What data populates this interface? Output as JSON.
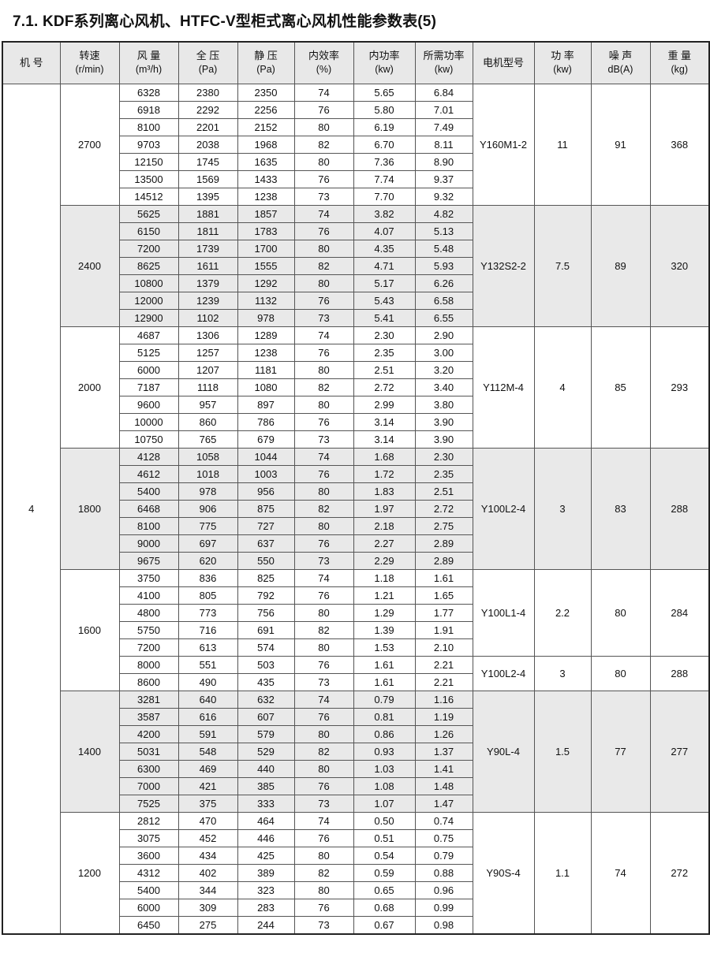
{
  "title": "7.1. KDF系列离心风机、HTFC-V型柜式离心风机性能参数表(5)",
  "machine_no": "4",
  "colors": {
    "header_bg": "#e8e8e8",
    "shaded_row_bg": "#e9e9e9",
    "border": "#555555"
  },
  "columns": [
    {
      "label": "机 号",
      "sub": ""
    },
    {
      "label": "转速",
      "sub": "(r/min)"
    },
    {
      "label": "风 量",
      "sub": "(m³/h)"
    },
    {
      "label": "全 压",
      "sub": "(Pa)"
    },
    {
      "label": "静 压",
      "sub": "(Pa)"
    },
    {
      "label": "内效率",
      "sub": "(%)"
    },
    {
      "label": "内功率",
      "sub": "(kw)"
    },
    {
      "label": "所需功率",
      "sub": "(kw)"
    },
    {
      "label": "电机型号",
      "sub": ""
    },
    {
      "label": "功 率",
      "sub": "(kw)"
    },
    {
      "label": "噪 声",
      "sub": "dB(A)"
    },
    {
      "label": "重 量",
      "sub": "(kg)"
    }
  ],
  "groups": [
    {
      "speed": "2700",
      "shaded": false,
      "rows": [
        [
          "6328",
          "2380",
          "2350",
          "74",
          "5.65",
          "6.84"
        ],
        [
          "6918",
          "2292",
          "2256",
          "76",
          "5.80",
          "7.01"
        ],
        [
          "8100",
          "2201",
          "2152",
          "80",
          "6.19",
          "7.49"
        ],
        [
          "9703",
          "2038",
          "1968",
          "82",
          "6.70",
          "8.11"
        ],
        [
          "12150",
          "1745",
          "1635",
          "80",
          "7.36",
          "8.90"
        ],
        [
          "13500",
          "1569",
          "1433",
          "76",
          "7.74",
          "9.37"
        ],
        [
          "14512",
          "1395",
          "1238",
          "73",
          "7.70",
          "9.32"
        ]
      ],
      "motors": [
        {
          "model": "Y160M1-2",
          "power": "11",
          "noise": "91",
          "weight": "368",
          "span": 7
        }
      ]
    },
    {
      "speed": "2400",
      "shaded": true,
      "rows": [
        [
          "5625",
          "1881",
          "1857",
          "74",
          "3.82",
          "4.82"
        ],
        [
          "6150",
          "1811",
          "1783",
          "76",
          "4.07",
          "5.13"
        ],
        [
          "7200",
          "1739",
          "1700",
          "80",
          "4.35",
          "5.48"
        ],
        [
          "8625",
          "1611",
          "1555",
          "82",
          "4.71",
          "5.93"
        ],
        [
          "10800",
          "1379",
          "1292",
          "80",
          "5.17",
          "6.26"
        ],
        [
          "12000",
          "1239",
          "1132",
          "76",
          "5.43",
          "6.58"
        ],
        [
          "12900",
          "1102",
          "978",
          "73",
          "5.41",
          "6.55"
        ]
      ],
      "motors": [
        {
          "model": "Y132S2-2",
          "power": "7.5",
          "noise": "89",
          "weight": "320",
          "span": 7
        }
      ]
    },
    {
      "speed": "2000",
      "shaded": false,
      "rows": [
        [
          "4687",
          "1306",
          "1289",
          "74",
          "2.30",
          "2.90"
        ],
        [
          "5125",
          "1257",
          "1238",
          "76",
          "2.35",
          "3.00"
        ],
        [
          "6000",
          "1207",
          "1181",
          "80",
          "2.51",
          "3.20"
        ],
        [
          "7187",
          "1118",
          "1080",
          "82",
          "2.72",
          "3.40"
        ],
        [
          "9600",
          "957",
          "897",
          "80",
          "2.99",
          "3.80"
        ],
        [
          "10000",
          "860",
          "786",
          "76",
          "3.14",
          "3.90"
        ],
        [
          "10750",
          "765",
          "679",
          "73",
          "3.14",
          "3.90"
        ]
      ],
      "motors": [
        {
          "model": "Y112M-4",
          "power": "4",
          "noise": "85",
          "weight": "293",
          "span": 7
        }
      ]
    },
    {
      "speed": "1800",
      "shaded": true,
      "rows": [
        [
          "4128",
          "1058",
          "1044",
          "74",
          "1.68",
          "2.30"
        ],
        [
          "4612",
          "1018",
          "1003",
          "76",
          "1.72",
          "2.35"
        ],
        [
          "5400",
          "978",
          "956",
          "80",
          "1.83",
          "2.51"
        ],
        [
          "6468",
          "906",
          "875",
          "82",
          "1.97",
          "2.72"
        ],
        [
          "8100",
          "775",
          "727",
          "80",
          "2.18",
          "2.75"
        ],
        [
          "9000",
          "697",
          "637",
          "76",
          "2.27",
          "2.89"
        ],
        [
          "9675",
          "620",
          "550",
          "73",
          "2.29",
          "2.89"
        ]
      ],
      "motors": [
        {
          "model": "Y100L2-4",
          "power": "3",
          "noise": "83",
          "weight": "288",
          "span": 7
        }
      ]
    },
    {
      "speed": "1600",
      "shaded": false,
      "rows": [
        [
          "3750",
          "836",
          "825",
          "74",
          "1.18",
          "1.61"
        ],
        [
          "4100",
          "805",
          "792",
          "76",
          "1.21",
          "1.65"
        ],
        [
          "4800",
          "773",
          "756",
          "80",
          "1.29",
          "1.77"
        ],
        [
          "5750",
          "716",
          "691",
          "82",
          "1.39",
          "1.91"
        ],
        [
          "7200",
          "613",
          "574",
          "80",
          "1.53",
          "2.10"
        ],
        [
          "8000",
          "551",
          "503",
          "76",
          "1.61",
          "2.21"
        ],
        [
          "8600",
          "490",
          "435",
          "73",
          "1.61",
          "2.21"
        ]
      ],
      "motors": [
        {
          "model": "Y100L1-4",
          "power": "2.2",
          "noise": "80",
          "weight": "284",
          "span": 5
        },
        {
          "model": "Y100L2-4",
          "power": "3",
          "noise": "80",
          "weight": "288",
          "span": 2
        }
      ]
    },
    {
      "speed": "1400",
      "shaded": true,
      "rows": [
        [
          "3281",
          "640",
          "632",
          "74",
          "0.79",
          "1.16"
        ],
        [
          "3587",
          "616",
          "607",
          "76",
          "0.81",
          "1.19"
        ],
        [
          "4200",
          "591",
          "579",
          "80",
          "0.86",
          "1.26"
        ],
        [
          "5031",
          "548",
          "529",
          "82",
          "0.93",
          "1.37"
        ],
        [
          "6300",
          "469",
          "440",
          "80",
          "1.03",
          "1.41"
        ],
        [
          "7000",
          "421",
          "385",
          "76",
          "1.08",
          "1.48"
        ],
        [
          "7525",
          "375",
          "333",
          "73",
          "1.07",
          "1.47"
        ]
      ],
      "motors": [
        {
          "model": "Y90L-4",
          "power": "1.5",
          "noise": "77",
          "weight": "277",
          "span": 7
        }
      ]
    },
    {
      "speed": "1200",
      "shaded": false,
      "rows": [
        [
          "2812",
          "470",
          "464",
          "74",
          "0.50",
          "0.74"
        ],
        [
          "3075",
          "452",
          "446",
          "76",
          "0.51",
          "0.75"
        ],
        [
          "3600",
          "434",
          "425",
          "80",
          "0.54",
          "0.79"
        ],
        [
          "4312",
          "402",
          "389",
          "82",
          "0.59",
          "0.88"
        ],
        [
          "5400",
          "344",
          "323",
          "80",
          "0.65",
          "0.96"
        ],
        [
          "6000",
          "309",
          "283",
          "76",
          "0.68",
          "0.99"
        ],
        [
          "6450",
          "275",
          "244",
          "73",
          "0.67",
          "0.98"
        ]
      ],
      "motors": [
        {
          "model": "Y90S-4",
          "power": "1.1",
          "noise": "74",
          "weight": "272",
          "span": 7
        }
      ]
    }
  ]
}
